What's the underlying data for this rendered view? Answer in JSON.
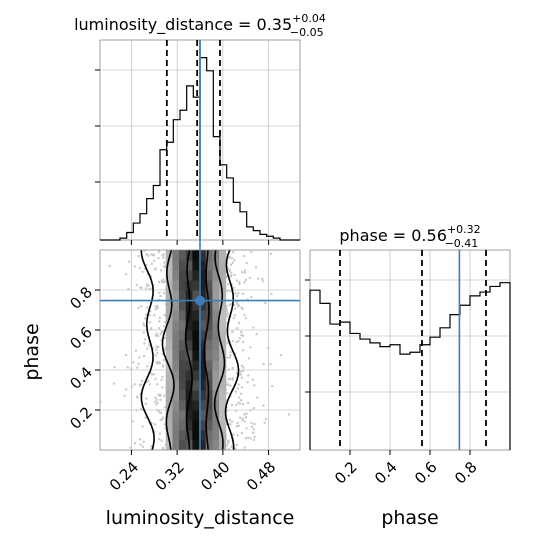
{
  "chart_data": {
    "type": "corner",
    "parameters": [
      "luminosity_distance",
      "phase"
    ],
    "truth": {
      "luminosity_distance": 0.36,
      "phase": 0.747
    },
    "colors": {
      "truth": "#3d7dbd",
      "hist": "#000000",
      "grid": "#b0b0b0"
    },
    "panels": [
      {
        "kind": "histogram",
        "parameter": "luminosity_distance",
        "title_main": "luminosity_distance = 0.35",
        "title_sup": "+0.04",
        "title_sub": "−0.05",
        "xlim": [
          0.185,
          0.535
        ],
        "ylim": [
          0,
          1.0
        ],
        "bin_edges": [
          0.185,
          0.1967,
          0.2083,
          0.22,
          0.2317,
          0.2433,
          0.255,
          0.2667,
          0.2783,
          0.29,
          0.3017,
          0.3133,
          0.325,
          0.3367,
          0.3483,
          0.36,
          0.3717,
          0.3833,
          0.395,
          0.4067,
          0.4183,
          0.43,
          0.4417,
          0.4533,
          0.465,
          0.4767,
          0.4883,
          0.5,
          0.5117,
          0.5233,
          0.535
        ],
        "counts": [
          0,
          0,
          0,
          0.01,
          0.04,
          0.09,
          0.14,
          0.22,
          0.29,
          0.48,
          0.52,
          0.64,
          0.69,
          0.82,
          0.76,
          0.97,
          0.9,
          0.55,
          0.4,
          0.33,
          0.2,
          0.15,
          0.07,
          0.05,
          0.03,
          0.02,
          0.01,
          0,
          0,
          0
        ],
        "quantile_lines": [
          0.302,
          0.355,
          0.395
        ],
        "truth_line": 0.36
      },
      {
        "kind": "histogram",
        "parameter": "phase",
        "title_main": "phase = 0.56",
        "title_sup": "+0.32",
        "title_sub": "−0.41",
        "xlim": [
          0.0,
          1.0
        ],
        "ylim": [
          0,
          1.0
        ],
        "bin_edges": [
          0.0,
          0.05,
          0.1,
          0.15,
          0.2,
          0.25,
          0.3,
          0.35,
          0.4,
          0.45,
          0.5,
          0.55,
          0.6,
          0.65,
          0.7,
          0.75,
          0.8,
          0.85,
          0.9,
          0.95,
          1.0
        ],
        "counts": [
          0.85,
          0.78,
          0.67,
          0.68,
          0.62,
          0.59,
          0.57,
          0.55,
          0.56,
          0.51,
          0.52,
          0.56,
          0.6,
          0.65,
          0.72,
          0.77,
          0.82,
          0.84,
          0.87,
          0.89
        ],
        "quantile_lines": [
          0.15,
          0.56,
          0.88
        ],
        "truth_line": 0.747
      },
      {
        "kind": "2d_density",
        "x_parameter": "luminosity_distance",
        "y_parameter": "phase",
        "xlim": [
          0.185,
          0.535
        ],
        "ylim": [
          0.0,
          1.0
        ],
        "xticks": [
          "0.24",
          "0.32",
          "0.40",
          "0.48"
        ],
        "yticks": [
          "0.2",
          "0.4",
          "0.6",
          "0.8"
        ],
        "xlabel": "luminosity_distance",
        "ylabel": "phase",
        "contour_x_levels": {
          "outer_left": 0.27,
          "outer_right": 0.415,
          "mid_left": 0.305,
          "mid_right": 0.395,
          "inner_left": 0.34,
          "inner_right": 0.372
        }
      }
    ],
    "phase_xticks": [
      "0.2",
      "0.4",
      "0.6",
      "0.8"
    ]
  }
}
